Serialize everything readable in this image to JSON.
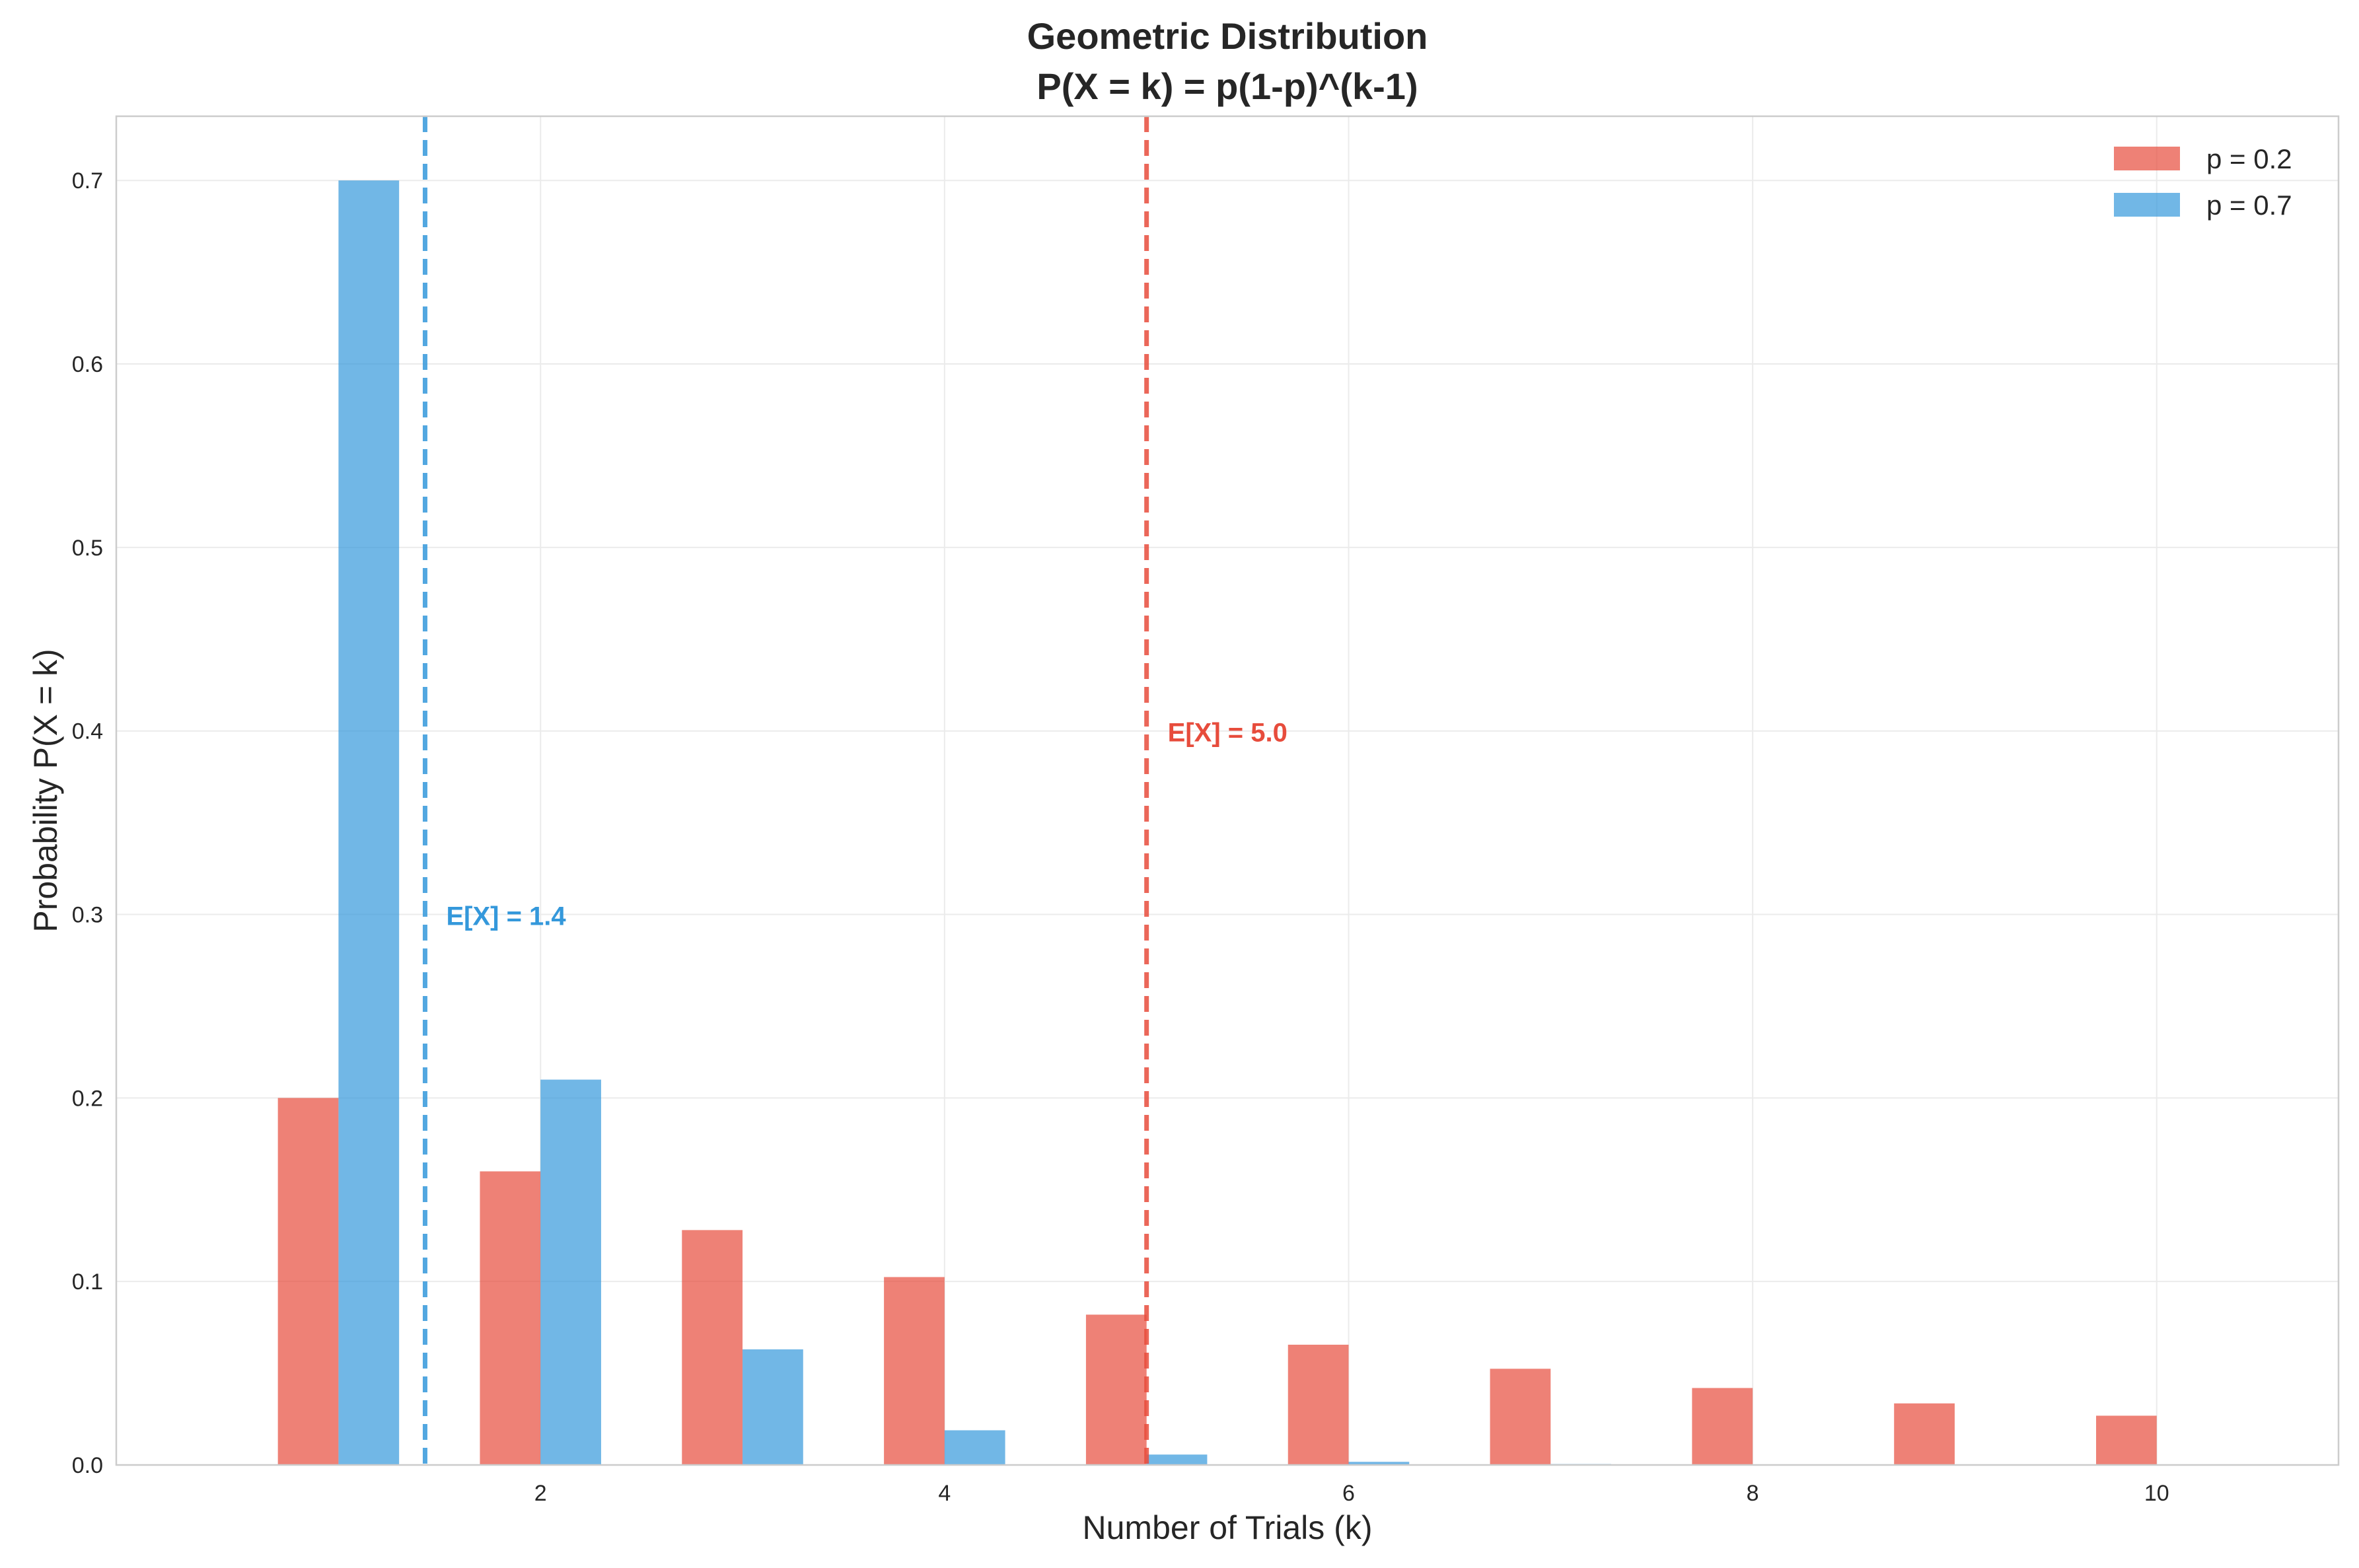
{
  "chart_data": {
    "type": "bar",
    "title": "Geometric Distribution",
    "subtitle": "P(X = k) = p(1-p)^(k-1)",
    "xlabel": "Number of Trials (k)",
    "ylabel": "Probability P(X = k)",
    "x": [
      1,
      2,
      3,
      4,
      5,
      6,
      7,
      8,
      9,
      10
    ],
    "xlim": [
      -0.1,
      10.9
    ],
    "ylim": [
      0,
      0.735
    ],
    "xticks": [
      2,
      4,
      6,
      8,
      10
    ],
    "xtick_labels": [
      "2",
      "4",
      "6",
      "8",
      "10"
    ],
    "yticks": [
      0.0,
      0.1,
      0.2,
      0.3,
      0.4,
      0.5,
      0.6,
      0.7
    ],
    "ytick_labels": [
      "0.0",
      "0.1",
      "0.2",
      "0.3",
      "0.4",
      "0.5",
      "0.6",
      "0.7"
    ],
    "grid": true,
    "legend_position": "top-right",
    "series": [
      {
        "name": "p = 0.2",
        "color": "#e74c3c",
        "values": [
          0.2,
          0.16,
          0.128,
          0.1024,
          0.08192,
          0.065536,
          0.0524288,
          0.04194304,
          0.033554432,
          0.0268435456
        ],
        "mean_line": 5.0,
        "mean_label": "E[X] = 5.0",
        "mean_label_y": 0.4
      },
      {
        "name": "p = 0.7",
        "color": "#3498db",
        "values": [
          0.7,
          0.21,
          0.063,
          0.0189,
          0.00567,
          0.001701,
          0.0005103,
          0.00015309,
          4.5927e-05,
          1.37781e-05
        ],
        "mean_line": 1.4286,
        "mean_label": "E[X] = 1.4",
        "mean_label_y": 0.3
      }
    ]
  }
}
